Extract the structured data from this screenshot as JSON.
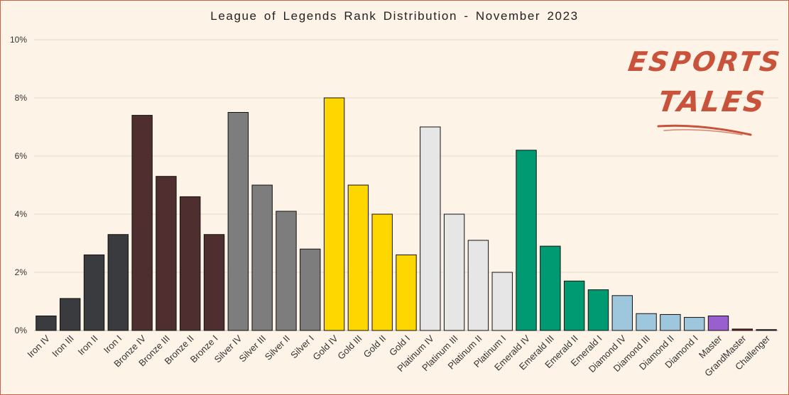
{
  "chart_data": {
    "type": "bar",
    "title": "League of Legends Rank Distribution  - November 2023",
    "xlabel": "",
    "ylabel": "",
    "ylim": [
      0,
      10
    ],
    "yticks": [
      "0%",
      "2%",
      "4%",
      "6%",
      "8%",
      "10%"
    ],
    "grid": true,
    "categories": [
      "Iron IV",
      "Iron III",
      "Iron II",
      "Iron I",
      "Bronze IV",
      "Bronze III",
      "Bronze II",
      "Bronze I",
      "Silver IV",
      "Silver III",
      "Silver II",
      "Silver I",
      "Gold IV",
      "Gold III",
      "Gold II",
      "Gold I",
      "Platinum IV",
      "Platinum III",
      "Platinum II",
      "Platinum I",
      "Emerald IV",
      "Emerald III",
      "Emerald II",
      "Emerald I",
      "Diamond IV",
      "Diamond III",
      "Diamond II",
      "Diamond I",
      "Master",
      "GrandMaster",
      "Challenger"
    ],
    "values": [
      0.5,
      1.1,
      2.6,
      3.3,
      7.4,
      5.3,
      4.6,
      3.3,
      7.5,
      5.0,
      4.1,
      2.8,
      8.0,
      5.0,
      4.0,
      2.6,
      7.0,
      4.0,
      3.1,
      2.0,
      6.2,
      2.9,
      1.7,
      1.4,
      1.2,
      0.58,
      0.55,
      0.45,
      0.5,
      0.05,
      0.03
    ],
    "bar_colors": [
      "#3a3b3e",
      "#3a3b3e",
      "#3a3b3e",
      "#3a3b3e",
      "#4f2e2f",
      "#4f2e2f",
      "#4f2e2f",
      "#4f2e2f",
      "#7d7d7d",
      "#7d7d7d",
      "#7d7d7d",
      "#7d7d7d",
      "#ffd700",
      "#ffd700",
      "#ffd700",
      "#ffd700",
      "#e6e6e6",
      "#e6e6e6",
      "#e6e6e6",
      "#e6e6e6",
      "#009a72",
      "#009a72",
      "#009a72",
      "#009a72",
      "#9ec6dc",
      "#9ec6dc",
      "#9ec6dc",
      "#9ec6dc",
      "#9a5fcf",
      "#7a2326",
      "#3a3a6e"
    ]
  },
  "logo": {
    "line1": "ESPORTS",
    "line2": "TALES",
    "color": "#c9523b"
  }
}
